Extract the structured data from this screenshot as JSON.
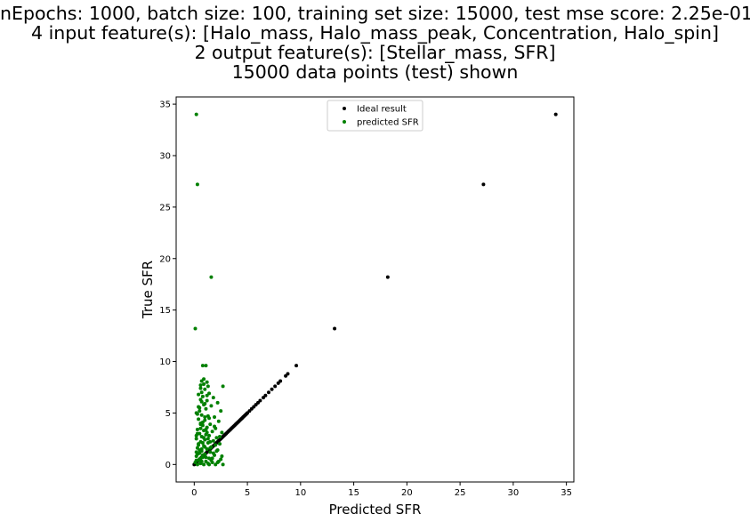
{
  "chart_data": {
    "type": "scatter",
    "title_lines": [
      "nEpochs: 1000, batch size: 100, training set size: 15000, test mse score: 2.25e-01",
      "4 input feature(s): [Halo_mass, Halo_mass_peak, Concentration, Halo_spin]",
      "2 output feature(s): [Stellar_mass, SFR]",
      "15000 data points (test) shown"
    ],
    "xlabel": "Predicted SFR",
    "ylabel": "True SFR",
    "xlim": [
      -1.7,
      35.7
    ],
    "ylim": [
      -1.7,
      35.7
    ],
    "xticks": [
      0,
      5,
      10,
      15,
      20,
      25,
      30,
      35
    ],
    "yticks": [
      0,
      5,
      10,
      15,
      20,
      25,
      30,
      35
    ],
    "legend_position": "top-center",
    "series": [
      {
        "name": "Ideal result",
        "color": "#000000",
        "points": [
          [
            0,
            0
          ],
          [
            0.1,
            0.1
          ],
          [
            0.2,
            0.2
          ],
          [
            0.3,
            0.3
          ],
          [
            0.4,
            0.4
          ],
          [
            0.5,
            0.5
          ],
          [
            0.6,
            0.6
          ],
          [
            0.7,
            0.7
          ],
          [
            0.8,
            0.8
          ],
          [
            0.9,
            0.9
          ],
          [
            1,
            1
          ],
          [
            1.1,
            1.1
          ],
          [
            1.2,
            1.2
          ],
          [
            1.3,
            1.3
          ],
          [
            1.4,
            1.4
          ],
          [
            1.5,
            1.5
          ],
          [
            1.6,
            1.6
          ],
          [
            1.7,
            1.7
          ],
          [
            1.8,
            1.8
          ],
          [
            1.9,
            1.9
          ],
          [
            2,
            2
          ],
          [
            2.1,
            2.1
          ],
          [
            2.2,
            2.2
          ],
          [
            2.3,
            2.3
          ],
          [
            2.4,
            2.4
          ],
          [
            2.5,
            2.5
          ],
          [
            2.6,
            2.6
          ],
          [
            2.7,
            2.7
          ],
          [
            2.8,
            2.8
          ],
          [
            2.9,
            2.9
          ],
          [
            3,
            3
          ],
          [
            3.1,
            3.1
          ],
          [
            3.2,
            3.2
          ],
          [
            3.3,
            3.3
          ],
          [
            3.4,
            3.4
          ],
          [
            3.5,
            3.5
          ],
          [
            3.6,
            3.6
          ],
          [
            3.7,
            3.7
          ],
          [
            3.8,
            3.8
          ],
          [
            3.9,
            3.9
          ],
          [
            4,
            4
          ],
          [
            4.1,
            4.1
          ],
          [
            4.2,
            4.2
          ],
          [
            4.3,
            4.3
          ],
          [
            4.4,
            4.4
          ],
          [
            4.5,
            4.5
          ],
          [
            4.6,
            4.6
          ],
          [
            4.7,
            4.7
          ],
          [
            4.8,
            4.8
          ],
          [
            4.9,
            4.9
          ],
          [
            5,
            5
          ],
          [
            5.2,
            5.2
          ],
          [
            5.4,
            5.4
          ],
          [
            5.6,
            5.6
          ],
          [
            5.8,
            5.8
          ],
          [
            6,
            6
          ],
          [
            6.2,
            6.2
          ],
          [
            6.5,
            6.5
          ],
          [
            6.7,
            6.7
          ],
          [
            7,
            7
          ],
          [
            7.3,
            7.3
          ],
          [
            7.6,
            7.6
          ],
          [
            7.9,
            7.9
          ],
          [
            8.1,
            8.1
          ],
          [
            8.6,
            8.6
          ],
          [
            8.8,
            8.8
          ],
          [
            9.6,
            9.6
          ],
          [
            13.2,
            13.2
          ],
          [
            18.2,
            18.2
          ],
          [
            27.2,
            27.2
          ],
          [
            34,
            34
          ]
        ]
      },
      {
        "name": "predicted SFR",
        "color": "#008000",
        "points": [
          [
            0.2,
            34
          ],
          [
            0.3,
            27.2
          ],
          [
            1.6,
            18.2
          ],
          [
            0.1,
            13.2
          ],
          [
            0.8,
            9.6
          ],
          [
            1.1,
            9.6
          ],
          [
            0.7,
            8.1
          ],
          [
            1.2,
            8.0
          ],
          [
            0.9,
            7.8
          ],
          [
            1.3,
            7.6
          ],
          [
            0.6,
            7.7
          ],
          [
            2.7,
            7.6
          ],
          [
            1.0,
            7.3
          ],
          [
            0.7,
            7.0
          ],
          [
            1.4,
            6.9
          ],
          [
            0.8,
            6.6
          ],
          [
            1.8,
            6.5
          ],
          [
            0.6,
            6.3
          ],
          [
            1.2,
            6.2
          ],
          [
            2.2,
            6.0
          ],
          [
            0.9,
            5.8
          ],
          [
            1.6,
            5.7
          ],
          [
            0.5,
            5.5
          ],
          [
            1.1,
            5.4
          ],
          [
            2.5,
            5.2
          ],
          [
            0.2,
            5.0
          ],
          [
            0.3,
            4.9
          ],
          [
            0.7,
            4.8
          ],
          [
            1.3,
            4.7
          ],
          [
            1.9,
            4.6
          ],
          [
            0.4,
            4.4
          ],
          [
            1.0,
            4.3
          ],
          [
            2.3,
            4.2
          ],
          [
            0.6,
            4.0
          ],
          [
            1.5,
            3.9
          ],
          [
            0.8,
            3.8
          ],
          [
            1.2,
            3.6
          ],
          [
            2.0,
            3.5
          ],
          [
            0.3,
            3.4
          ],
          [
            0.9,
            3.3
          ],
          [
            1.7,
            3.2
          ],
          [
            2.6,
            3.1
          ],
          [
            0.5,
            3.0
          ],
          [
            1.1,
            2.9
          ],
          [
            1.4,
            2.8
          ],
          [
            0.7,
            2.7
          ],
          [
            2.1,
            2.6
          ],
          [
            0.2,
            2.5
          ],
          [
            1.0,
            2.4
          ],
          [
            1.8,
            2.3
          ],
          [
            0.6,
            2.2
          ],
          [
            1.3,
            2.1
          ],
          [
            2.4,
            2.0
          ],
          [
            0.4,
            1.9
          ],
          [
            0.9,
            1.8
          ],
          [
            1.6,
            1.7
          ],
          [
            0.3,
            1.6
          ],
          [
            1.2,
            1.5
          ],
          [
            2.2,
            1.4
          ],
          [
            0.7,
            1.3
          ],
          [
            1.5,
            1.2
          ],
          [
            0.5,
            1.1
          ],
          [
            1.0,
            1.0
          ],
          [
            1.9,
            0.9
          ],
          [
            0.2,
            0.8
          ],
          [
            0.8,
            0.7
          ],
          [
            1.4,
            0.6
          ],
          [
            2.5,
            0.5
          ],
          [
            0.4,
            0.4
          ],
          [
            1.1,
            0.3
          ],
          [
            1.7,
            0.2
          ],
          [
            0.6,
            0.1
          ],
          [
            0.9,
            0.0
          ],
          [
            2.0,
            0.0
          ],
          [
            2.7,
            0.0
          ],
          [
            0.3,
            0.0
          ],
          [
            1.3,
            0.1
          ],
          [
            0.1,
            0.2
          ],
          [
            2.3,
            0.3
          ],
          [
            0.5,
            0.5
          ],
          [
            1.6,
            0.4
          ],
          [
            0.8,
            0.9
          ],
          [
            2.6,
            0.8
          ],
          [
            0.2,
            1.2
          ],
          [
            1.8,
            1.1
          ],
          [
            0.7,
            1.5
          ],
          [
            2.1,
            1.3
          ],
          [
            0.4,
            2.0
          ],
          [
            1.5,
            2.2
          ],
          [
            0.9,
            2.6
          ],
          [
            2.4,
            2.7
          ],
          [
            0.3,
            3.0
          ],
          [
            1.2,
            3.1
          ],
          [
            0.6,
            3.5
          ],
          [
            1.9,
            3.7
          ],
          [
            0.8,
            4.1
          ],
          [
            1.4,
            4.5
          ],
          [
            0.5,
            5.2
          ],
          [
            1.0,
            5.9
          ],
          [
            0.4,
            6.8
          ],
          [
            0.6,
            7.4
          ],
          [
            0.9,
            8.3
          ],
          [
            1.5,
            1.6
          ],
          [
            0.2,
            0.4
          ],
          [
            0.6,
            0.6
          ],
          [
            1.1,
            0.7
          ],
          [
            0.3,
            1.0
          ],
          [
            1.7,
            0.6
          ],
          [
            2.2,
            0.2
          ],
          [
            0.7,
            0.3
          ],
          [
            1.4,
            0.0
          ],
          [
            0.5,
            1.4
          ],
          [
            1.0,
            1.7
          ],
          [
            2.0,
            1.9
          ],
          [
            0.8,
            2.1
          ],
          [
            1.3,
            2.5
          ],
          [
            0.2,
            2.8
          ],
          [
            1.1,
            3.4
          ],
          [
            0.6,
            3.9
          ],
          [
            1.0,
            4.6
          ],
          [
            0.4,
            5.6
          ],
          [
            0.7,
            6.1
          ],
          [
            1.2,
            6.7
          ]
        ]
      }
    ]
  }
}
